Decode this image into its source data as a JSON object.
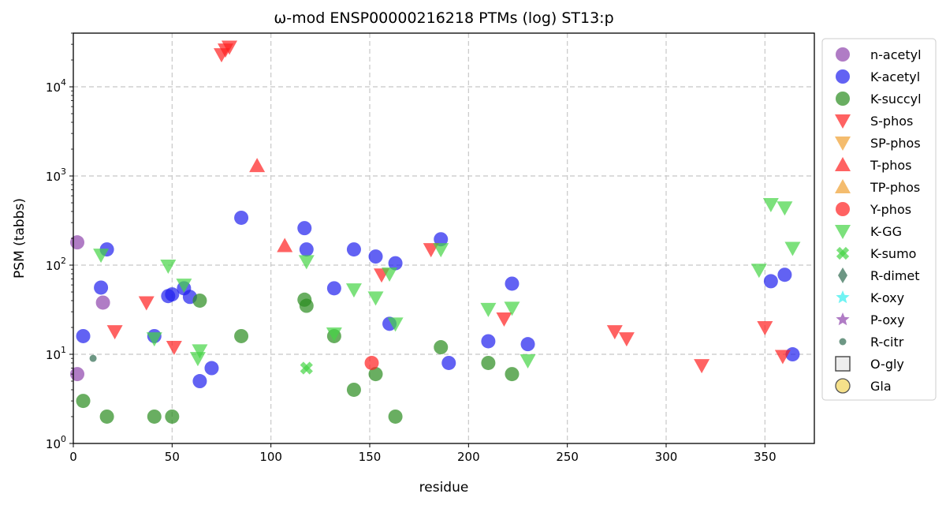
{
  "chart_data": {
    "type": "scatter",
    "title": "ω-mod ENSP00000216218 PTMs (log) ST13:p",
    "xlabel": "residue",
    "ylabel": "PSM (tabbs)",
    "xlim": [
      0,
      375
    ],
    "ylim": [
      1,
      40000
    ],
    "yscale": "log",
    "grid": true,
    "legend_position": "right",
    "x_ticks": [
      0,
      50,
      100,
      150,
      200,
      250,
      300,
      350
    ],
    "y_ticks": [
      1,
      10,
      100,
      1000,
      10000
    ],
    "y_tick_labels": [
      {
        "base": "10",
        "exp": "0"
      },
      {
        "base": "10",
        "exp": "1"
      },
      {
        "base": "10",
        "exp": "2"
      },
      {
        "base": "10",
        "exp": "3"
      },
      {
        "base": "10",
        "exp": "4"
      }
    ],
    "series": [
      {
        "name": "n-acetyl",
        "marker": "circle",
        "color": "#8e44ad",
        "points": [
          [
            2,
            180
          ],
          [
            2,
            6
          ],
          [
            15,
            38
          ]
        ]
      },
      {
        "name": "K-acetyl",
        "marker": "circle",
        "color": "#2020ee",
        "points": [
          [
            5,
            16
          ],
          [
            14,
            56
          ],
          [
            17,
            150
          ],
          [
            41,
            16
          ],
          [
            48,
            45
          ],
          [
            50,
            47
          ],
          [
            56,
            55
          ],
          [
            59,
            44
          ],
          [
            64,
            5
          ],
          [
            70,
            7
          ],
          [
            85,
            340
          ],
          [
            117,
            260
          ],
          [
            118,
            150
          ],
          [
            132,
            55
          ],
          [
            142,
            150
          ],
          [
            153,
            125
          ],
          [
            160,
            22
          ],
          [
            163,
            105
          ],
          [
            186,
            195
          ],
          [
            190,
            8
          ],
          [
            210,
            14
          ],
          [
            222,
            62
          ],
          [
            230,
            13
          ],
          [
            353,
            66
          ],
          [
            360,
            78
          ],
          [
            364,
            10
          ]
        ]
      },
      {
        "name": "K-succyl",
        "marker": "circle",
        "color": "#2a8c1e",
        "points": [
          [
            5,
            3
          ],
          [
            17,
            2
          ],
          [
            41,
            2
          ],
          [
            50,
            2
          ],
          [
            64,
            40
          ],
          [
            85,
            16
          ],
          [
            117,
            41
          ],
          [
            118,
            35
          ],
          [
            132,
            16
          ],
          [
            142,
            4
          ],
          [
            153,
            6
          ],
          [
            163,
            2
          ],
          [
            186,
            12
          ],
          [
            210,
            8
          ],
          [
            222,
            6
          ]
        ]
      },
      {
        "name": "S-phos",
        "marker": "triangle-down",
        "color": "#ff2020",
        "points": [
          [
            21,
            18
          ],
          [
            37,
            38
          ],
          [
            51,
            12
          ],
          [
            75,
            23000
          ],
          [
            77,
            26000
          ],
          [
            79,
            28000
          ],
          [
            156,
            78
          ],
          [
            181,
            150
          ],
          [
            218,
            25
          ],
          [
            274,
            18
          ],
          [
            280,
            15
          ],
          [
            318,
            7.5
          ],
          [
            350,
            20
          ],
          [
            359,
            9.5
          ]
        ]
      },
      {
        "name": "SP-phos",
        "marker": "triangle-down",
        "color": "#f0a030",
        "points": []
      },
      {
        "name": "T-phos",
        "marker": "triangle-up",
        "color": "#ff2020",
        "points": [
          [
            93,
            1300
          ],
          [
            107,
            165
          ]
        ]
      },
      {
        "name": "TP-phos",
        "marker": "triangle-up",
        "color": "#f0a030",
        "points": []
      },
      {
        "name": "Y-phos",
        "marker": "circle",
        "color": "#ff2020",
        "points": [
          [
            151,
            8
          ]
        ]
      },
      {
        "name": "K-GG",
        "marker": "triangle-down",
        "color": "#44d444",
        "points": [
          [
            14,
            130
          ],
          [
            41,
            15
          ],
          [
            48,
            98
          ],
          [
            56,
            60
          ],
          [
            63,
            9
          ],
          [
            64,
            11
          ],
          [
            118,
            110
          ],
          [
            132,
            17
          ],
          [
            142,
            53
          ],
          [
            153,
            43
          ],
          [
            160,
            80
          ],
          [
            163,
            22
          ],
          [
            186,
            150
          ],
          [
            210,
            32
          ],
          [
            222,
            33
          ],
          [
            230,
            8.5
          ],
          [
            347,
            88
          ],
          [
            353,
            480
          ],
          [
            360,
            440
          ],
          [
            364,
            155
          ]
        ]
      },
      {
        "name": "K-sumo",
        "marker": "x",
        "color": "#44d444",
        "points": [
          [
            118,
            7
          ]
        ]
      },
      {
        "name": "R-dimet",
        "marker": "diamond",
        "color": "#2f6b50",
        "points": []
      },
      {
        "name": "K-oxy",
        "marker": "star",
        "color": "#33eeee",
        "points": []
      },
      {
        "name": "P-oxy",
        "marker": "star",
        "color": "#8e44ad",
        "points": []
      },
      {
        "name": "R-citr",
        "marker": "small-circle",
        "color": "#2f6b50",
        "points": [
          [
            10,
            9
          ]
        ]
      },
      {
        "name": "O-gly",
        "marker": "square-open",
        "color": "#444444",
        "points": []
      },
      {
        "name": "Gla",
        "marker": "circle-yellow",
        "color": "#f5e08a",
        "points": []
      }
    ]
  }
}
